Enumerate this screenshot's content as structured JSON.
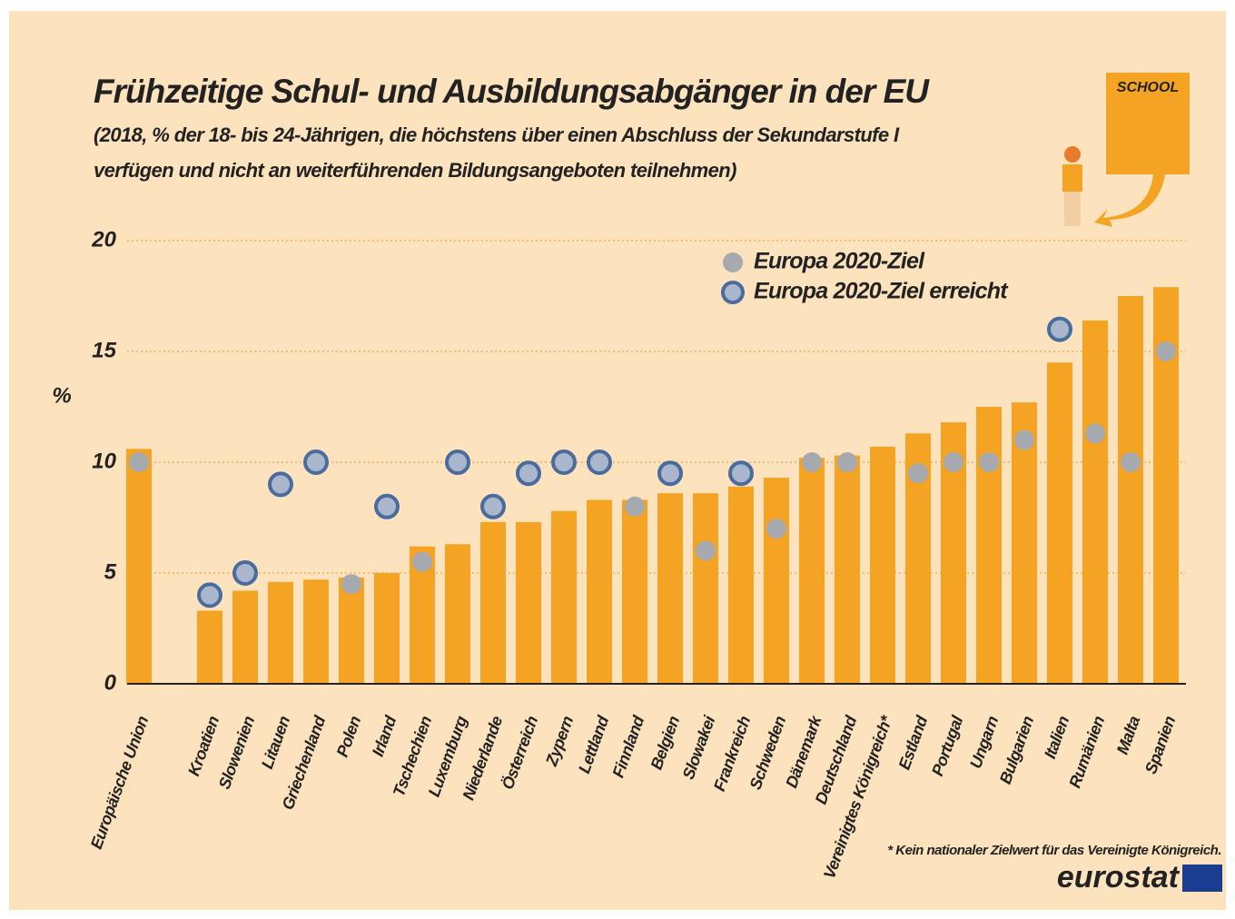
{
  "chart_data": {
    "type": "bar",
    "title": "Frühzeitige Schul- und Ausbildungsabgänger in der EU",
    "subtitle": [
      "(2018, % der 18- bis 24-Jährigen, die höchstens über einen Abschluss der Sekundarstufe I",
      "verfügen und nicht an weiterführenden Bildungsangeboten teilnehmen)"
    ],
    "y_label": "%",
    "categories": [
      "Europäische Union",
      "Kroatien",
      "Slowenien",
      "Litauen",
      "Griechenland",
      "Polen",
      "Irland",
      "Tschechien",
      "Luxemburg",
      "Niederlande",
      "Österreich",
      "Zypern",
      "Lettland",
      "Finnland",
      "Belgien",
      "Slowakei",
      "Frankreich",
      "Schweden",
      "Dänemark",
      "Deutschland",
      "Vereinigtes Königreich*",
      "Estland",
      "Portugal",
      "Ungarn",
      "Bulgarien",
      "Italien",
      "Rumänien",
      "Malta",
      "Spanien"
    ],
    "values": [
      10.6,
      3.3,
      4.2,
      4.6,
      4.7,
      4.8,
      5.0,
      6.2,
      6.3,
      7.3,
      7.3,
      7.8,
      8.3,
      8.3,
      8.6,
      8.6,
      8.9,
      9.3,
      10.2,
      10.3,
      10.7,
      11.3,
      11.8,
      12.5,
      12.7,
      14.5,
      16.4,
      17.5,
      17.9
    ],
    "color": "#f4a422",
    "series": [
      {
        "name": "Europa 2020-Ziel",
        "color": "#a6a9ad",
        "values": [
          10,
          null,
          null,
          null,
          null,
          4.5,
          null,
          5.5,
          null,
          null,
          null,
          null,
          null,
          8,
          null,
          6,
          null,
          7,
          10,
          10,
          null,
          9.5,
          10,
          10,
          11,
          null,
          11.3,
          10,
          15
        ]
      },
      {
        "name": "Europa 2020-Ziel erreicht",
        "color": "#a9b6cc",
        "values": [
          null,
          4,
          5,
          9,
          10,
          null,
          8,
          null,
          10,
          8,
          9.5,
          10,
          10,
          null,
          9.5,
          null,
          9.5,
          null,
          null,
          null,
          null,
          null,
          null,
          null,
          null,
          16,
          null,
          null,
          null
        ]
      }
    ],
    "ylim": [
      0,
      20
    ],
    "yticks": [
      0,
      5,
      10,
      15,
      20
    ],
    "grid": true,
    "legend": "top-right",
    "note": "* Kein nationaler Zielwert für das Vereinigte Königreich.",
    "source_logo": "eurostat",
    "illustration_text": "SCHOOL"
  }
}
